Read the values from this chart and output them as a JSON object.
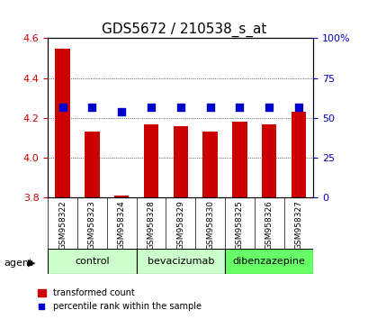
{
  "title": "GDS5672 / 210538_s_at",
  "samples": [
    "GSM958322",
    "GSM958323",
    "GSM958324",
    "GSM958328",
    "GSM958329",
    "GSM958330",
    "GSM958325",
    "GSM958326",
    "GSM958327"
  ],
  "transformed_count": [
    4.55,
    4.13,
    3.81,
    4.17,
    4.16,
    4.13,
    4.18,
    4.17,
    4.23
  ],
  "percentile_rank": [
    57,
    57,
    54,
    57,
    57,
    57,
    57,
    57,
    57
  ],
  "ylim_left": [
    3.8,
    4.6
  ],
  "ylim_right": [
    0,
    100
  ],
  "yticks_left": [
    3.8,
    4.0,
    4.2,
    4.4,
    4.6
  ],
  "yticks_right": [
    0,
    25,
    50,
    75,
    100
  ],
  "ytick_labels_right": [
    "0",
    "25",
    "50",
    "75",
    "100%"
  ],
  "bar_color": "#cc0000",
  "dot_color": "#0000cc",
  "bar_bottom": 3.8,
  "groups": [
    {
      "label": "control",
      "indices": [
        0,
        1,
        2
      ],
      "color": "#ccffcc"
    },
    {
      "label": "bevacizumab",
      "indices": [
        3,
        4,
        5
      ],
      "color": "#ccffcc"
    },
    {
      "label": "dibenzazepine",
      "indices": [
        6,
        7,
        8
      ],
      "color": "#66ff66"
    }
  ],
  "agent_label": "agent",
  "legend_bar_label": "transformed count",
  "legend_dot_label": "percentile rank within the sample",
  "grid_color": "#000000",
  "background_color": "#ffffff",
  "plot_bg_color": "#ffffff",
  "tick_label_color_left": "#cc0000",
  "tick_label_color_right": "#0000cc"
}
